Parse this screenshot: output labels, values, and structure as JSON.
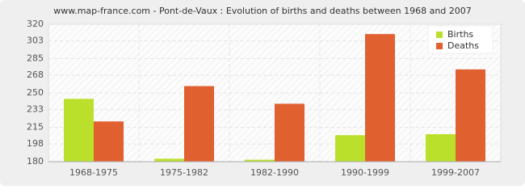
{
  "chart_data": {
    "type": "bar",
    "title": "www.map-france.com - Pont-de-Vaux : Evolution of births and deaths between 1968 and 2007",
    "categories": [
      "1968-1975",
      "1975-1982",
      "1982-1990",
      "1990-1999",
      "1999-2007"
    ],
    "series": [
      {
        "name": "Births",
        "color": "#bbe02c",
        "values": [
          244,
          183,
          182,
          207,
          208
        ]
      },
      {
        "name": "Deaths",
        "color": "#e06030",
        "values": [
          221,
          257,
          239,
          310,
          274
        ]
      }
    ],
    "ylim": [
      180,
      320
    ],
    "yticks": [
      180,
      198,
      215,
      233,
      250,
      268,
      285,
      303,
      320
    ],
    "grid": true,
    "legend": "top-right"
  }
}
